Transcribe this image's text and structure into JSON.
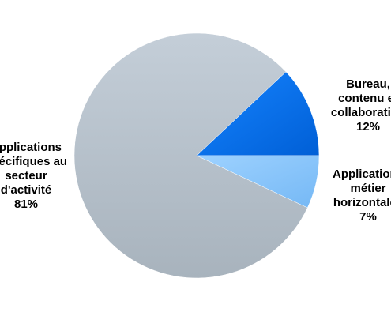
{
  "chart_data": {
    "type": "pie",
    "title": "",
    "slices": [
      {
        "label_lines": [
          "Applications",
          "spécifiques au",
          "secteur",
          "d'activité"
        ],
        "percent_label": "81%",
        "value": 81,
        "color": "#b8c4cf"
      },
      {
        "label_lines": [
          "Bureau,",
          "contenu et",
          "collaboration"
        ],
        "percent_label": "12%",
        "value": 12,
        "color": "#0a72f0"
      },
      {
        "label_lines": [
          "Applications",
          "métier",
          "horizontales"
        ],
        "percent_label": "7%",
        "value": 7,
        "color": "#8cc8ff"
      }
    ],
    "legend": "none"
  }
}
